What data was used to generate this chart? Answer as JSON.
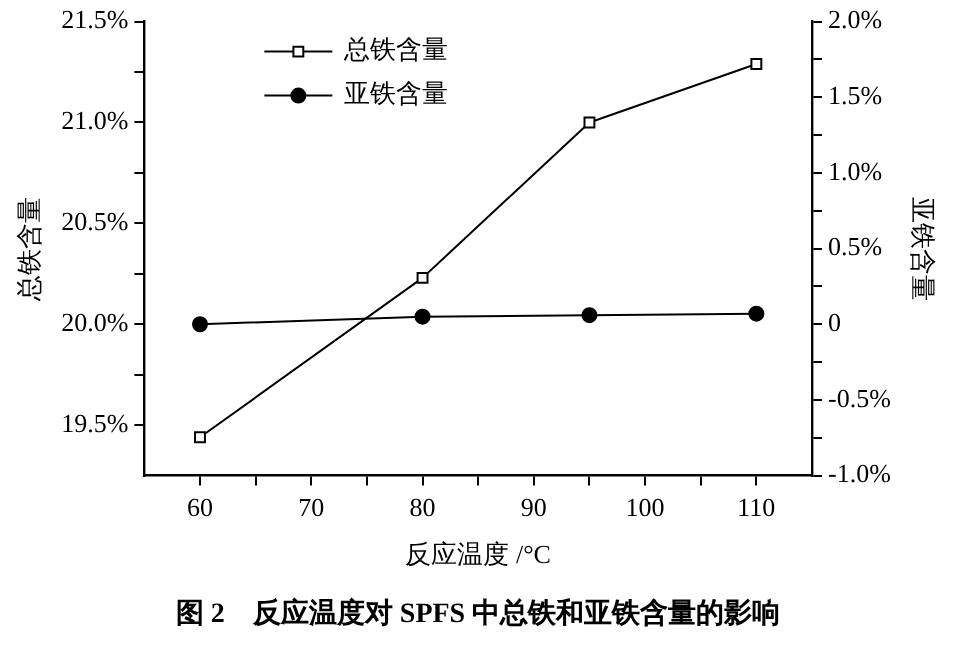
{
  "chart_data": {
    "type": "line",
    "xlabel": "反应温度 /°C",
    "ylabel": "总铁含量",
    "y2label": "亚铁含量",
    "annotations": [
      "图 2　反应温度对 SPFS 中总铁和亚铁含量的影响"
    ],
    "x": [
      60,
      80,
      95,
      110
    ],
    "series": [
      {
        "name": "总铁含量",
        "color": "#000000",
        "marker": "square",
        "values": [
          19.44,
          20.23,
          21.0,
          21.29
        ]
      },
      {
        "name": "亚铁含量",
        "color": "#000000",
        "marker": "circle",
        "axis": "y2",
        "values": [
          0.0,
          0.05,
          0.06,
          0.07
        ]
      }
    ],
    "xlim": [
      55,
      115
    ],
    "xticks": [
      60,
      {
        "value": 65,
        "label": null
      },
      70,
      {
        "value": 75,
        "label": null
      },
      80,
      {
        "value": 85,
        "label": null
      },
      90,
      {
        "value": 95,
        "label": null
      },
      100,
      {
        "value": 105,
        "label": null
      },
      110
    ],
    "ylim": [
      19.25,
      21.5
    ],
    "yticks": [
      {
        "value": 19.5,
        "label": "19.5%"
      },
      {
        "value": 19.75,
        "label": null
      },
      {
        "value": 20.0,
        "label": "20.0%"
      },
      {
        "value": 20.25,
        "label": null
      },
      {
        "value": 20.5,
        "label": "20.5%"
      },
      {
        "value": 20.75,
        "label": null
      },
      {
        "value": 21.0,
        "label": "21.0%"
      },
      {
        "value": 21.25,
        "label": null
      },
      {
        "value": 21.5,
        "label": "21.5%"
      }
    ],
    "y2lim": [
      -1.0,
      2.0
    ],
    "y2ticks": [
      {
        "value": -1.0,
        "label": "-1.0%"
      },
      {
        "value": -0.75,
        "label": null
      },
      {
        "value": -0.5,
        "label": "-0.5%"
      },
      {
        "value": -0.25,
        "label": null
      },
      0,
      {
        "value": 0.25,
        "label": null
      },
      {
        "value": 0.5,
        "label": "0.5%"
      },
      {
        "value": 0.75,
        "label": null
      },
      {
        "value": 1.0,
        "label": "1.0%"
      },
      {
        "value": 1.25,
        "label": null
      },
      {
        "value": 1.5,
        "label": "1.5%"
      },
      {
        "value": 1.75,
        "label": null
      },
      {
        "value": 2.0,
        "label": "2.0%"
      }
    ],
    "grid": false,
    "legend": "top left",
    "line_style": "solid"
  }
}
